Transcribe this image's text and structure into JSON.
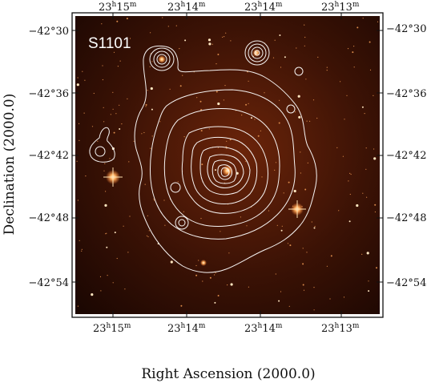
{
  "field_label": "S1101",
  "x_axis_title": "Right Ascension (2000.0)",
  "y_axis_title": "Declination (2000.0)",
  "ra_ticks": [
    {
      "h": "23",
      "m": "15",
      "s": "m"
    },
    {
      "h": "23",
      "m": "14",
      "s": "m"
    },
    {
      "h": "23",
      "m": "14",
      "s": "m"
    },
    {
      "h": "23",
      "m": "13",
      "s": "m"
    }
  ],
  "dec_ticks": [
    "−42°30",
    "−42°36",
    "−42°42",
    "−42°48",
    "−42°54"
  ],
  "colors": {
    "image_background": "#2a0c03",
    "image_mid": "#5a1e08",
    "contour": "#ffffff",
    "star": "#ffd9a0"
  },
  "objects": [
    {
      "name": "bright-star-left",
      "icon": "star-icon"
    },
    {
      "name": "bright-star-right",
      "icon": "star-icon"
    },
    {
      "name": "cluster-core",
      "icon": "galaxy-icon"
    }
  ]
}
